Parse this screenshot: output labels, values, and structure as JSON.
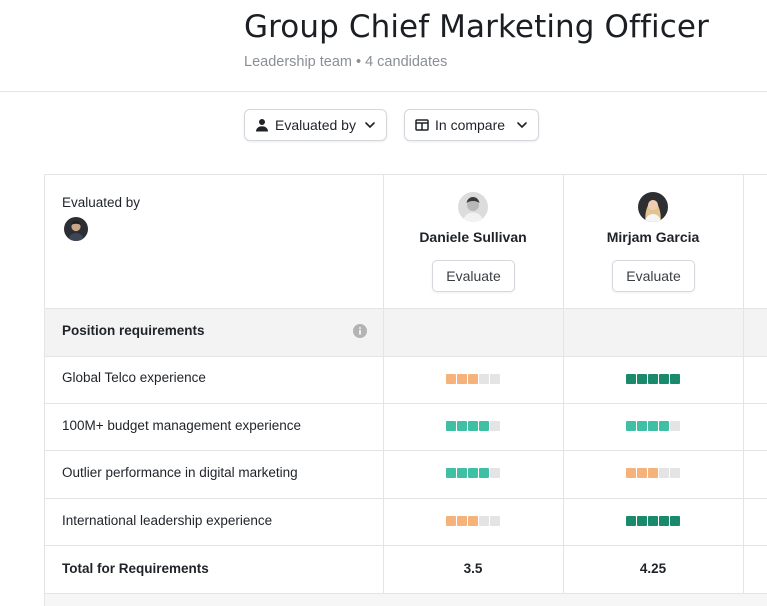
{
  "header": {
    "title": "Group Chief Marketing Officer",
    "team": "Leadership team",
    "separator": "•",
    "candidates_count": "4 candidates"
  },
  "filters": {
    "evaluated_by_label": "Evaluated by",
    "evaluated_by_icon": "person-icon",
    "compare_label": "In compare",
    "compare_icon": "table-columns-icon"
  },
  "table": {
    "evaluated_by_header": "Evaluated by",
    "candidates": [
      {
        "name": "Daniele Sullivan",
        "evaluate_label": "Evaluate",
        "total": "3.5"
      },
      {
        "name": "Mirjam Garcia",
        "evaluate_label": "Evaluate",
        "total": "4.25"
      }
    ],
    "section_title": "Position requirements",
    "requirements": [
      {
        "label": "Global Telco experience",
        "ratings": [
          3,
          5
        ]
      },
      {
        "label": "100M+ budget management experience",
        "ratings": [
          4,
          4
        ]
      },
      {
        "label": "Outlier performance in digital marketing",
        "ratings": [
          4,
          3
        ]
      },
      {
        "label": "International leadership experience",
        "ratings": [
          3,
          5
        ]
      }
    ],
    "rating_max": 5,
    "total_label": "Total for Requirements"
  },
  "colors": {
    "rating_low": "#f5b27a",
    "rating_mid": "#3fbfa4",
    "rating_high": "#1a8a6c",
    "rating_empty": "#e4e4e4"
  }
}
